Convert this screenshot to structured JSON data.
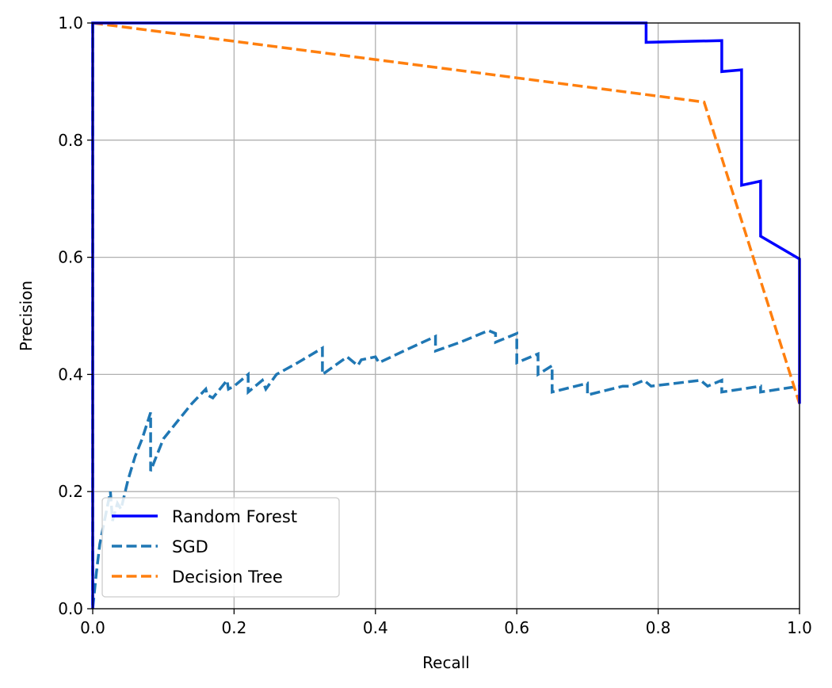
{
  "chart_data": {
    "type": "line",
    "xlabel": "Recall",
    "ylabel": "Precision",
    "xlim": [
      0,
      1
    ],
    "ylim": [
      0,
      1
    ],
    "xticks": [
      "0.0",
      "0.2",
      "0.4",
      "0.6",
      "0.8",
      "1.0"
    ],
    "yticks": [
      "0.0",
      "0.2",
      "0.4",
      "0.6",
      "0.8",
      "1.0"
    ],
    "grid": true,
    "legend_position": "lower-left",
    "series": [
      {
        "name": "Random Forest",
        "color": "#0000ff",
        "style": "solid",
        "x": [
          0.0,
          0.0,
          0.783,
          0.783,
          0.89,
          0.89,
          0.918,
          0.918,
          0.945,
          0.945,
          1.0,
          1.0
        ],
        "y": [
          0.0,
          1.0,
          1.0,
          0.967,
          0.97,
          0.917,
          0.92,
          0.723,
          0.73,
          0.636,
          0.597,
          0.35
        ]
      },
      {
        "name": "SGD",
        "color": "#1f77b4",
        "style": "dashed",
        "x": [
          0.0,
          0.0,
          0.005,
          0.01,
          0.02,
          0.025,
          0.028,
          0.035,
          0.04,
          0.05,
          0.06,
          0.07,
          0.082,
          0.082,
          0.09,
          0.1,
          0.12,
          0.14,
          0.16,
          0.162,
          0.17,
          0.19,
          0.192,
          0.2,
          0.22,
          0.22,
          0.24,
          0.245,
          0.26,
          0.29,
          0.325,
          0.325,
          0.36,
          0.375,
          0.38,
          0.4,
          0.405,
          0.44,
          0.485,
          0.485,
          0.52,
          0.56,
          0.57,
          0.57,
          0.6,
          0.6,
          0.63,
          0.63,
          0.65,
          0.65,
          0.7,
          0.7,
          0.75,
          0.76,
          0.78,
          0.79,
          0.86,
          0.87,
          0.89,
          0.89,
          0.945,
          0.945,
          1.0
        ],
        "y": [
          1.0,
          0.0,
          0.06,
          0.11,
          0.17,
          0.2,
          0.15,
          0.18,
          0.17,
          0.22,
          0.26,
          0.29,
          0.335,
          0.235,
          0.26,
          0.29,
          0.32,
          0.35,
          0.375,
          0.365,
          0.36,
          0.39,
          0.375,
          0.38,
          0.4,
          0.37,
          0.39,
          0.375,
          0.4,
          0.42,
          0.445,
          0.4,
          0.43,
          0.415,
          0.425,
          0.43,
          0.42,
          0.44,
          0.465,
          0.44,
          0.455,
          0.475,
          0.47,
          0.455,
          0.47,
          0.42,
          0.435,
          0.4,
          0.415,
          0.37,
          0.385,
          0.365,
          0.38,
          0.38,
          0.39,
          0.38,
          0.39,
          0.38,
          0.39,
          0.37,
          0.38,
          0.37,
          0.38
        ]
      },
      {
        "name": "Decision Tree",
        "color": "#ff7f0e",
        "style": "dashed",
        "x": [
          0.0,
          0.865,
          1.0
        ],
        "y": [
          1.0,
          0.865,
          0.35
        ]
      }
    ]
  }
}
